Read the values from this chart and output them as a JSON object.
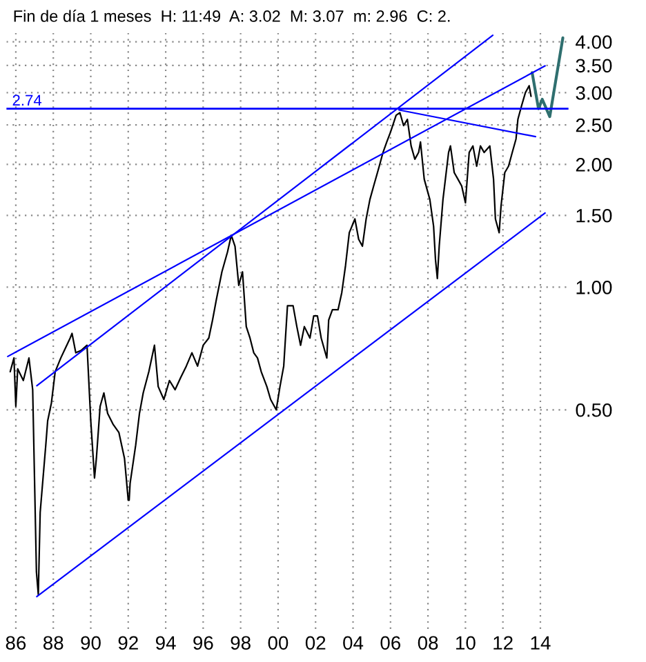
{
  "chart_data": {
    "type": "line",
    "title": "Fin de día 1 meses  H: 11:49  A: 3.02  M: 3.07  m: 2.96  C: 2.",
    "log": "y",
    "grid": true,
    "legend": false,
    "tick_labels": "xy",
    "xlim": [
      1985.5,
      2015.5
    ],
    "ylim": [
      0.145,
      4.2
    ],
    "xticks": [
      {
        "value": 1986,
        "label": "86"
      },
      {
        "value": 1988,
        "label": "88"
      },
      {
        "value": 1990,
        "label": "90"
      },
      {
        "value": 1992,
        "label": "92"
      },
      {
        "value": 1994,
        "label": "94"
      },
      {
        "value": 1996,
        "label": "96"
      },
      {
        "value": 1998,
        "label": "98"
      },
      {
        "value": 2000,
        "label": "00"
      },
      {
        "value": 2002,
        "label": "02"
      },
      {
        "value": 2004,
        "label": "04"
      },
      {
        "value": 2006,
        "label": "06"
      },
      {
        "value": 2008,
        "label": "08"
      },
      {
        "value": 2010,
        "label": "10"
      },
      {
        "value": 2012,
        "label": "12"
      },
      {
        "value": 2014,
        "label": "14"
      }
    ],
    "yticks": [
      {
        "value": 0.5,
        "label": "0.50"
      },
      {
        "value": 1.0,
        "label": "1.00"
      },
      {
        "value": 1.5,
        "label": "1.50"
      },
      {
        "value": 2.0,
        "label": "2.00"
      },
      {
        "value": 2.5,
        "label": "2.50"
      },
      {
        "value": 3.0,
        "label": "3.00"
      },
      {
        "value": 3.5,
        "label": "3.50"
      },
      {
        "value": 4.0,
        "label": "4.00"
      }
    ],
    "ref_lines": [
      {
        "axis": "y",
        "value": 2.74,
        "label": "2.74",
        "color": "#0000ff"
      }
    ],
    "series": [
      {
        "color": "#000000",
        "x": [
          1985.7,
          1985.9,
          1986.0,
          1986.1,
          1986.4,
          1986.7,
          1986.9,
          1987.1,
          1987.2,
          1987.3,
          1987.6,
          1987.7,
          1987.9,
          1988.1,
          1988.4,
          1988.9,
          1989.0,
          1989.2,
          1989.5,
          1989.8,
          1990.0,
          1990.2,
          1990.3,
          1990.5,
          1990.7,
          1990.9,
          1991.2,
          1991.5,
          1991.8,
          1992.0,
          1992.05,
          1992.1,
          1992.4,
          1992.6,
          1992.8,
          1993.1,
          1993.4,
          1993.6,
          1993.9,
          1994.2,
          1994.5,
          1994.8,
          1995.1,
          1995.4,
          1995.7,
          1996.0,
          1996.3,
          1996.5,
          1996.7,
          1997.0,
          1997.3,
          1997.5,
          1997.7,
          1997.9,
          1998.1,
          1998.3,
          1998.5,
          1998.7,
          1998.9,
          1999.1,
          1999.4,
          1999.6,
          1999.9,
          2000.1,
          2000.3,
          2000.5,
          2000.8,
          2001.0,
          2001.2,
          2001.4,
          2001.7,
          2001.9,
          2002.1,
          2002.3,
          2002.6,
          2002.7,
          2002.9,
          2003.2,
          2003.4,
          2003.6,
          2003.8,
          2004.1,
          2004.3,
          2004.5,
          2004.7,
          2004.9,
          2005.1,
          2005.4,
          2005.6,
          2005.8,
          2006.0,
          2006.3,
          2006.5,
          2006.7,
          2006.9,
          2007.1,
          2007.3,
          2007.5,
          2007.6,
          2007.8,
          2008.1,
          2008.3,
          2008.4,
          2008.5,
          2008.6,
          2008.8,
          2009.1,
          2009.2,
          2009.4,
          2009.6,
          2009.8,
          2010.0,
          2010.2,
          2010.4,
          2010.6,
          2010.8,
          2011.0,
          2011.3,
          2011.5,
          2011.6,
          2011.8,
          2011.9,
          2012.1,
          2012.3,
          2012.5,
          2012.7,
          2012.8,
          2013.0,
          2013.2,
          2013.4,
          2013.5
        ],
        "values": [
          0.62,
          0.67,
          0.51,
          0.63,
          0.59,
          0.67,
          0.56,
          0.2,
          0.176,
          0.28,
          0.41,
          0.47,
          0.52,
          0.62,
          0.67,
          0.75,
          0.77,
          0.69,
          0.7,
          0.72,
          0.47,
          0.34,
          0.38,
          0.51,
          0.55,
          0.49,
          0.46,
          0.44,
          0.38,
          0.3,
          0.3,
          0.33,
          0.41,
          0.49,
          0.55,
          0.62,
          0.72,
          0.57,
          0.53,
          0.59,
          0.56,
          0.6,
          0.64,
          0.69,
          0.64,
          0.72,
          0.75,
          0.83,
          0.93,
          1.09,
          1.22,
          1.34,
          1.26,
          1.01,
          1.09,
          0.8,
          0.75,
          0.69,
          0.67,
          0.62,
          0.57,
          0.53,
          0.5,
          0.57,
          0.64,
          0.9,
          0.9,
          0.8,
          0.72,
          0.8,
          0.75,
          0.85,
          0.85,
          0.75,
          0.67,
          0.83,
          0.88,
          0.88,
          0.97,
          1.13,
          1.36,
          1.47,
          1.31,
          1.26,
          1.47,
          1.64,
          1.77,
          1.98,
          2.14,
          2.27,
          2.4,
          2.64,
          2.68,
          2.49,
          2.58,
          2.22,
          2.06,
          2.14,
          2.27,
          1.84,
          1.64,
          1.41,
          1.17,
          1.05,
          1.26,
          1.64,
          2.14,
          2.22,
          1.91,
          1.84,
          1.77,
          1.61,
          2.14,
          2.22,
          1.98,
          2.22,
          2.14,
          2.22,
          1.84,
          1.47,
          1.36,
          1.58,
          1.91,
          1.98,
          2.14,
          2.31,
          2.58,
          2.79,
          3.0,
          3.12,
          2.94
        ]
      },
      {
        "color": "#2f6f6f",
        "x": [
          2013.56,
          2013.9,
          2014.1,
          2014.5,
          2015.2
        ],
        "values": [
          3.36,
          2.74,
          2.89,
          2.62,
          4.09
        ]
      },
      {
        "color": "#0000ff",
        "x": [
          1985.57,
          2014.25
        ],
        "values": [
          0.676,
          3.49
        ]
      },
      {
        "color": "#0000ff",
        "x": [
          1987.12,
          2011.46
        ],
        "values": [
          0.573,
          4.15
        ]
      },
      {
        "color": "#0000ff",
        "x": [
          2006.46,
          2013.74
        ],
        "values": [
          2.72,
          2.34
        ]
      },
      {
        "color": "#0000ff",
        "x": [
          1987.12,
          2014.25
        ],
        "values": [
          0.174,
          1.52
        ]
      }
    ]
  }
}
